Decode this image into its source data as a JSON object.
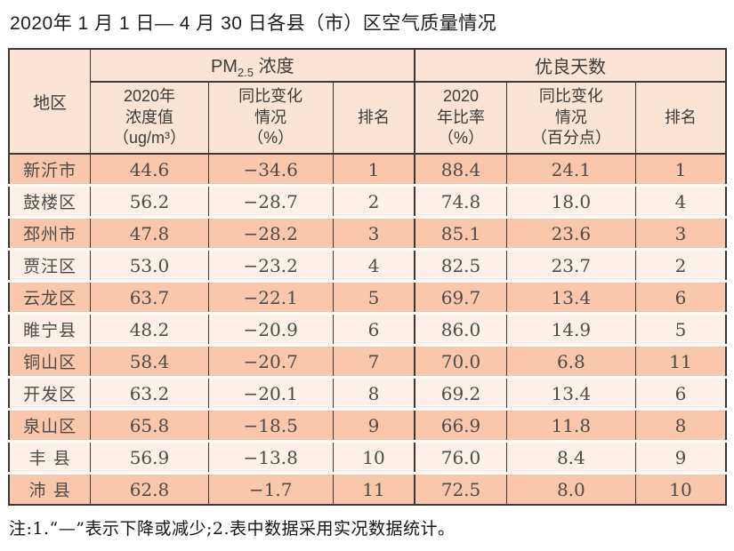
{
  "title": "2020年 1 月 1 日— 4 月 30 日各县（市）区空气质量情况",
  "table": {
    "region_header": "地区",
    "groups": {
      "pm25_base": "PM",
      "pm25_sub": "2.5",
      "pm25_rest": " 浓度",
      "good_days": "优良天数"
    },
    "sub_headers": [
      "2020年\n浓度值\n（ug/m³）",
      "同比变化\n情况\n（%）",
      "排名",
      "2020\n年比率\n（%）",
      "同比变化\n情况\n（百分点）",
      "排名"
    ],
    "rows": [
      {
        "region": "新沂市",
        "pm_value": "44.6",
        "pm_change": "−34.6",
        "pm_rank": "1",
        "good_rate": "88.4",
        "good_change": "24.1",
        "good_rank": "1"
      },
      {
        "region": "鼓楼区",
        "pm_value": "56.2",
        "pm_change": "−28.7",
        "pm_rank": "2",
        "good_rate": "74.8",
        "good_change": "18.0",
        "good_rank": "4"
      },
      {
        "region": "邳州市",
        "pm_value": "47.8",
        "pm_change": "−28.2",
        "pm_rank": "3",
        "good_rate": "85.1",
        "good_change": "23.6",
        "good_rank": "3"
      },
      {
        "region": "贾汪区",
        "pm_value": "53.0",
        "pm_change": "−23.2",
        "pm_rank": "4",
        "good_rate": "82.5",
        "good_change": "23.7",
        "good_rank": "2"
      },
      {
        "region": "云龙区",
        "pm_value": "63.7",
        "pm_change": "−22.1",
        "pm_rank": "5",
        "good_rate": "69.7",
        "good_change": "13.4",
        "good_rank": "6"
      },
      {
        "region": "睢宁县",
        "pm_value": "48.2",
        "pm_change": "−20.9",
        "pm_rank": "6",
        "good_rate": "86.0",
        "good_change": "14.9",
        "good_rank": "5"
      },
      {
        "region": "铜山区",
        "pm_value": "58.4",
        "pm_change": "−20.7",
        "pm_rank": "7",
        "good_rate": "70.0",
        "good_change": "6.8",
        "good_rank": "11"
      },
      {
        "region": "开发区",
        "pm_value": "63.2",
        "pm_change": "−20.1",
        "pm_rank": "8",
        "good_rate": "69.2",
        "good_change": "13.4",
        "good_rank": "6"
      },
      {
        "region": "泉山区",
        "pm_value": "65.8",
        "pm_change": "−18.5",
        "pm_rank": "9",
        "good_rate": "66.9",
        "good_change": "11.8",
        "good_rank": "8"
      },
      {
        "region": "丰 县",
        "pm_value": "56.9",
        "pm_change": "−13.8",
        "pm_rank": "10",
        "good_rate": "76.0",
        "good_change": "8.4",
        "good_rank": "9"
      },
      {
        "region": "沛 县",
        "pm_value": "62.8",
        "pm_change": "−1.7",
        "pm_rank": "11",
        "good_rate": "72.5",
        "good_change": "8.0",
        "good_rank": "10"
      }
    ]
  },
  "note": "注:1.“—”表示下降或减少;2.表中数据采用实况数据统计。",
  "colors": {
    "header_bg": "#fce4d4",
    "row_odd_bg": "#f9c7ac",
    "row_even_bg": "#fdf0e8",
    "border": "#3b3835",
    "data_text": "#4e4a47",
    "title_text": "#1d1d1d"
  },
  "chart_data": {
    "type": "table",
    "title": "2020年1月1日—4月30日各县（市）区空气质量情况",
    "column_groups": [
      "PM2.5浓度",
      "优良天数"
    ],
    "columns": [
      "地区",
      "PM2.5浓度 2020年浓度值（ug/m³）",
      "PM2.5浓度 同比变化情况（%）",
      "PM2.5浓度 排名",
      "优良天数 2020年比率（%）",
      "优良天数 同比变化情况（百分点）",
      "优良天数 排名"
    ],
    "rows": [
      [
        "新沂市",
        44.6,
        -34.6,
        1,
        88.4,
        24.1,
        1
      ],
      [
        "鼓楼区",
        56.2,
        -28.7,
        2,
        74.8,
        18.0,
        4
      ],
      [
        "邳州市",
        47.8,
        -28.2,
        3,
        85.1,
        23.6,
        3
      ],
      [
        "贾汪区",
        53.0,
        -23.2,
        4,
        82.5,
        23.7,
        2
      ],
      [
        "云龙区",
        63.7,
        -22.1,
        5,
        69.7,
        13.4,
        6
      ],
      [
        "睢宁县",
        48.2,
        -20.9,
        6,
        86.0,
        14.9,
        5
      ],
      [
        "铜山区",
        58.4,
        -20.7,
        7,
        70.0,
        6.8,
        11
      ],
      [
        "开发区",
        63.2,
        -20.1,
        8,
        69.2,
        13.4,
        6
      ],
      [
        "泉山区",
        65.8,
        -18.5,
        9,
        66.9,
        11.8,
        8
      ],
      [
        "丰县",
        56.9,
        -13.8,
        10,
        76.0,
        8.4,
        9
      ],
      [
        "沛县",
        62.8,
        -1.7,
        11,
        72.5,
        8.0,
        10
      ]
    ],
    "footnote": "注:1.“—”表示下降或减少;2.表中数据采用实况数据统计。"
  }
}
